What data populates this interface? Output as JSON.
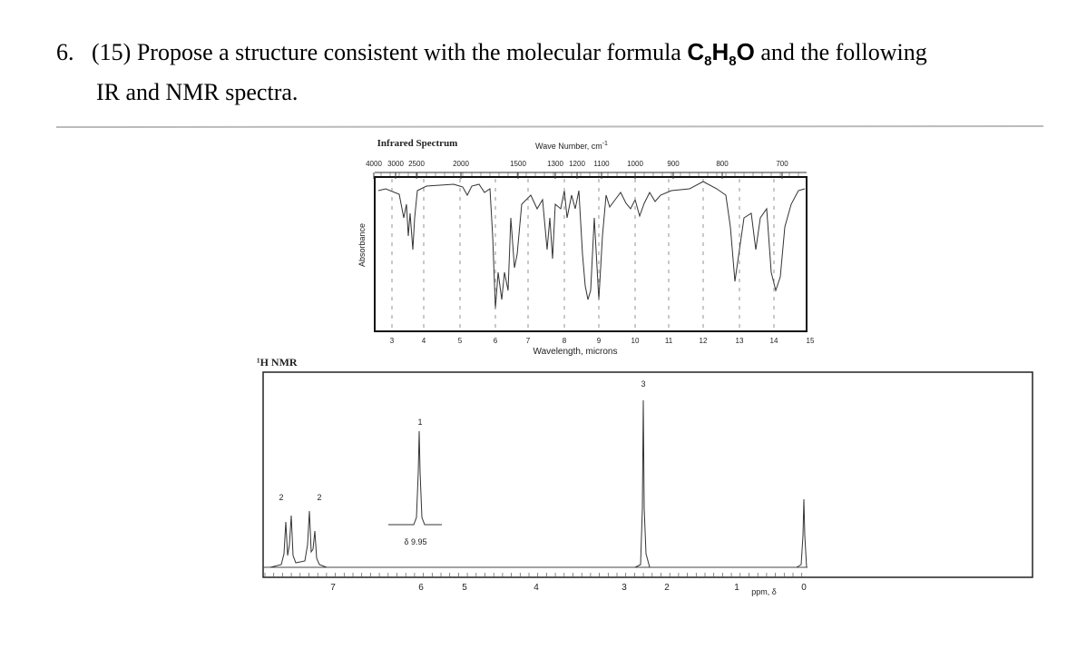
{
  "question": {
    "number": "6.",
    "points": "(15)",
    "text_before": "Propose a structure consistent with the molecular formula",
    "formula": [
      "C",
      "8",
      "H",
      "8",
      "O"
    ],
    "text_after": "and the following",
    "line2": "IR and NMR spectra."
  },
  "ir": {
    "title": "Infrared Spectrum",
    "top_axis_label": "Wave Number, cm",
    "top_axis_unit_exp": "-1",
    "wavenumbers": [
      "4000",
      "3000",
      "2500",
      "2000",
      "1500",
      "1300",
      "1200",
      "1100",
      "1000",
      "900",
      "800",
      "700"
    ],
    "y_label": "Absorbance",
    "microns": [
      "3",
      "4",
      "5",
      "6",
      "7",
      "8",
      "9",
      "10",
      "11",
      "12",
      "13",
      "14",
      "15"
    ],
    "x_label": "Wavelength, microns"
  },
  "nmr": {
    "label": "¹H NMR",
    "integrations": [
      "2",
      "2",
      "1",
      "3"
    ],
    "inset_label": "δ 9.95",
    "ppm_ticks": [
      "7",
      "6",
      "5",
      "4",
      "3",
      "2",
      "1",
      "0"
    ],
    "x_label": "ppm, δ"
  }
}
